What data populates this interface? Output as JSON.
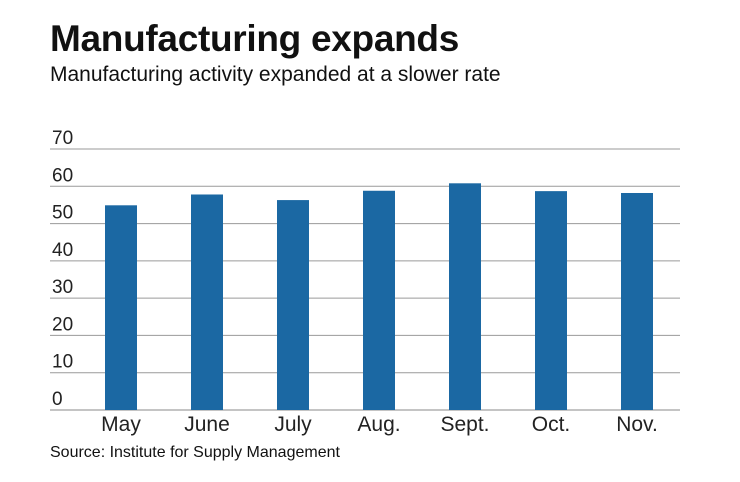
{
  "header": {
    "title": "Manufacturing expands",
    "subtitle": "Manufacturing activity expanded at a slower rate"
  },
  "footer": {
    "source": "Source: Institute for Supply Management"
  },
  "colors": {
    "bar": "#1b68a3",
    "grid": "#9a9a9a",
    "axis": "#888888"
  },
  "chart_data": {
    "type": "bar",
    "title": "Manufacturing expands",
    "subtitle": "Manufacturing activity expanded at a slower rate",
    "categories": [
      "May",
      "June",
      "July",
      "Aug.",
      "Sept.",
      "Oct.",
      "Nov."
    ],
    "values": [
      54.9,
      57.8,
      56.3,
      58.8,
      60.8,
      58.7,
      58.2
    ],
    "xlabel": "",
    "ylabel": "",
    "ylim": [
      0,
      70
    ],
    "yticks": [
      0,
      10,
      20,
      30,
      40,
      50,
      60,
      70
    ],
    "grid": true,
    "legend": "none"
  }
}
